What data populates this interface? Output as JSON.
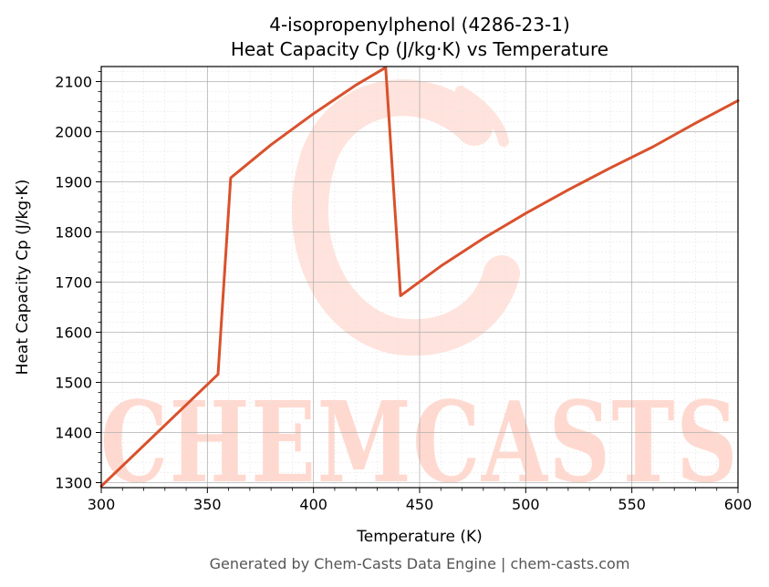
{
  "chart_data": {
    "type": "line",
    "title_line1": "4-isopropenylphenol (4286-23-1)",
    "title_line2": "Heat Capacity Cp (J/kg·K) vs Temperature",
    "xlabel": "Temperature (K)",
    "ylabel": "Heat Capacity Cp (J/kg·K)",
    "xlim": [
      300,
      600
    ],
    "ylim": [
      1290,
      2130
    ],
    "xticks": [
      300,
      350,
      400,
      450,
      500,
      550,
      600
    ],
    "yticks": [
      1300,
      1400,
      1500,
      1600,
      1700,
      1800,
      1900,
      2000,
      2100
    ],
    "grid": true,
    "series": [
      {
        "color": "#d9512c",
        "x": [
          300,
          355,
          361,
          380,
          400,
          420,
          434,
          441,
          460,
          480,
          500,
          520,
          540,
          560,
          580,
          600
        ],
        "y": [
          1293,
          1516,
          1908,
          1974,
          2036,
          2093,
          2128,
          1673,
          1732,
          1787,
          1837,
          1884,
          1928,
          1970,
          2017,
          2062
        ]
      }
    ]
  },
  "watermark": {
    "text": "CHEMCASTS",
    "color": "#ffd9cf"
  },
  "footer": "Generated by Chem-Casts Data Engine | chem-casts.com"
}
